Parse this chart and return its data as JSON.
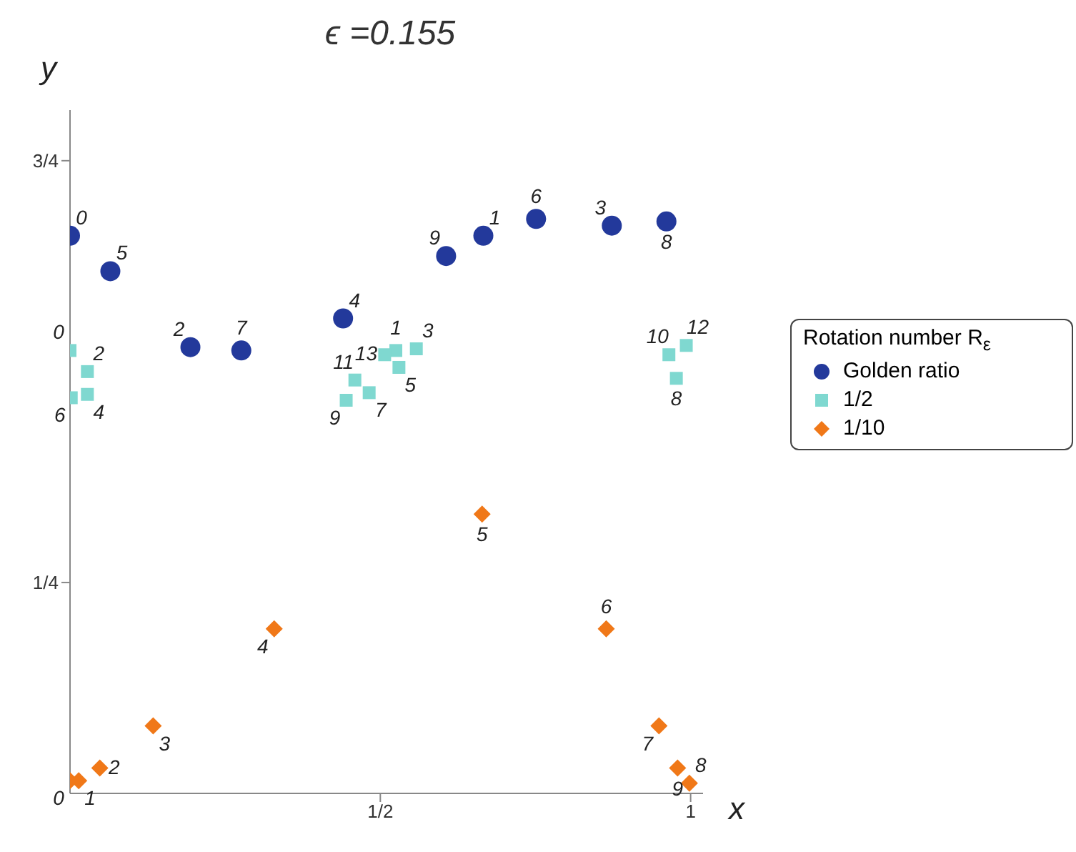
{
  "chart_data": {
    "type": "scatter",
    "title": "ϵ =0.155",
    "xlabel": "x",
    "ylabel": "y",
    "legend_title": "Rotation number R$_{ε}$",
    "legend": "right",
    "xlim": [
      0,
      1.02
    ],
    "xticks": [
      {
        "value": 0.5,
        "label": "1/2"
      },
      1
    ],
    "ylim": [
      0,
      0.81
    ],
    "yticks": [
      {
        "value": 0.25,
        "label": "1/4"
      },
      {
        "value": 0.75,
        "label": "3/4"
      }
    ],
    "series": [
      {
        "name": "Golden ratio",
        "color": "#23399b",
        "marker": "circle",
        "x": [
          0,
          0.666,
          0.194,
          0.873,
          0.44,
          0.065,
          0.751,
          0.276,
          0.961,
          0.606
        ],
        "values": [
          0.661,
          0.661,
          0.529,
          0.673,
          0.563,
          0.619,
          0.681,
          0.525,
          0.678,
          0.637
        ]
      },
      {
        "name": "1/2",
        "color": "#7fd8d0",
        "marker": "square",
        "x": [
          0,
          0.525,
          0.028,
          0.558,
          0.028,
          0.53,
          0.002,
          0.482,
          0.977,
          0.445,
          0.965,
          0.459,
          0.993,
          0.507
        ],
        "values": [
          0.525,
          0.525,
          0.5,
          0.527,
          0.473,
          0.505,
          0.469,
          0.475,
          0.492,
          0.466,
          0.52,
          0.49,
          0.531,
          0.52
        ]
      },
      {
        "name": "1/10",
        "color": "#f07818",
        "marker": "diamond",
        "x": [
          0,
          0.014,
          0.048,
          0.134,
          0.329,
          0.664,
          0.864,
          0.949,
          0.998,
          0.979
        ],
        "values": [
          0.015,
          0.015,
          0.03,
          0.08,
          0.195,
          0.331,
          0.195,
          0.08,
          0.012,
          0.03
        ]
      }
    ],
    "annotations": [
      {
        "text": "0",
        "x": 0,
        "y": 0.661
      },
      {
        "text": "1",
        "x": 0.666,
        "y": 0.661
      },
      {
        "text": "2",
        "x": 0.194,
        "y": 0.529
      },
      {
        "text": "3",
        "x": 0.873,
        "y": 0.673
      },
      {
        "text": "4",
        "x": 0.44,
        "y": 0.563
      },
      {
        "text": "5",
        "x": 0.065,
        "y": 0.619
      },
      {
        "text": "6",
        "x": 0.751,
        "y": 0.681
      },
      {
        "text": "7",
        "x": 0.276,
        "y": 0.525
      },
      {
        "text": "8",
        "x": 0.961,
        "y": 0.678
      },
      {
        "text": "9",
        "x": 0.606,
        "y": 0.637
      },
      {
        "text": "0",
        "x": 0,
        "y": 0.525
      },
      {
        "text": "1",
        "x": 0.525,
        "y": 0.525
      },
      {
        "text": "2",
        "x": 0.028,
        "y": 0.5
      },
      {
        "text": "3",
        "x": 0.558,
        "y": 0.527
      },
      {
        "text": "4",
        "x": 0.028,
        "y": 0.473
      },
      {
        "text": "5",
        "x": 0.53,
        "y": 0.505
      },
      {
        "text": "6",
        "x": 0.002,
        "y": 0.469
      },
      {
        "text": "7",
        "x": 0.482,
        "y": 0.475
      },
      {
        "text": "8",
        "x": 0.977,
        "y": 0.492
      },
      {
        "text": "9",
        "x": 0.445,
        "y": 0.466
      },
      {
        "text": "10",
        "x": 0.965,
        "y": 0.52
      },
      {
        "text": "11",
        "x": 0.459,
        "y": 0.49
      },
      {
        "text": "12",
        "x": 0.993,
        "y": 0.531
      },
      {
        "text": "13",
        "x": 0.507,
        "y": 0.52
      },
      {
        "text": "0",
        "x": 0,
        "y": 0.015
      },
      {
        "text": "1",
        "x": 0.014,
        "y": 0.015
      },
      {
        "text": "2",
        "x": 0.048,
        "y": 0.03
      },
      {
        "text": "3",
        "x": 0.134,
        "y": 0.08
      },
      {
        "text": "4",
        "x": 0.329,
        "y": 0.195
      },
      {
        "text": "5",
        "x": 0.664,
        "y": 0.331
      },
      {
        "text": "6",
        "x": 0.864,
        "y": 0.195
      },
      {
        "text": "7",
        "x": 0.949,
        "y": 0.08
      },
      {
        "text": "8",
        "x": 0.998,
        "y": 0.012
      },
      {
        "text": "9",
        "x": 0.979,
        "y": 0.03
      }
    ]
  }
}
